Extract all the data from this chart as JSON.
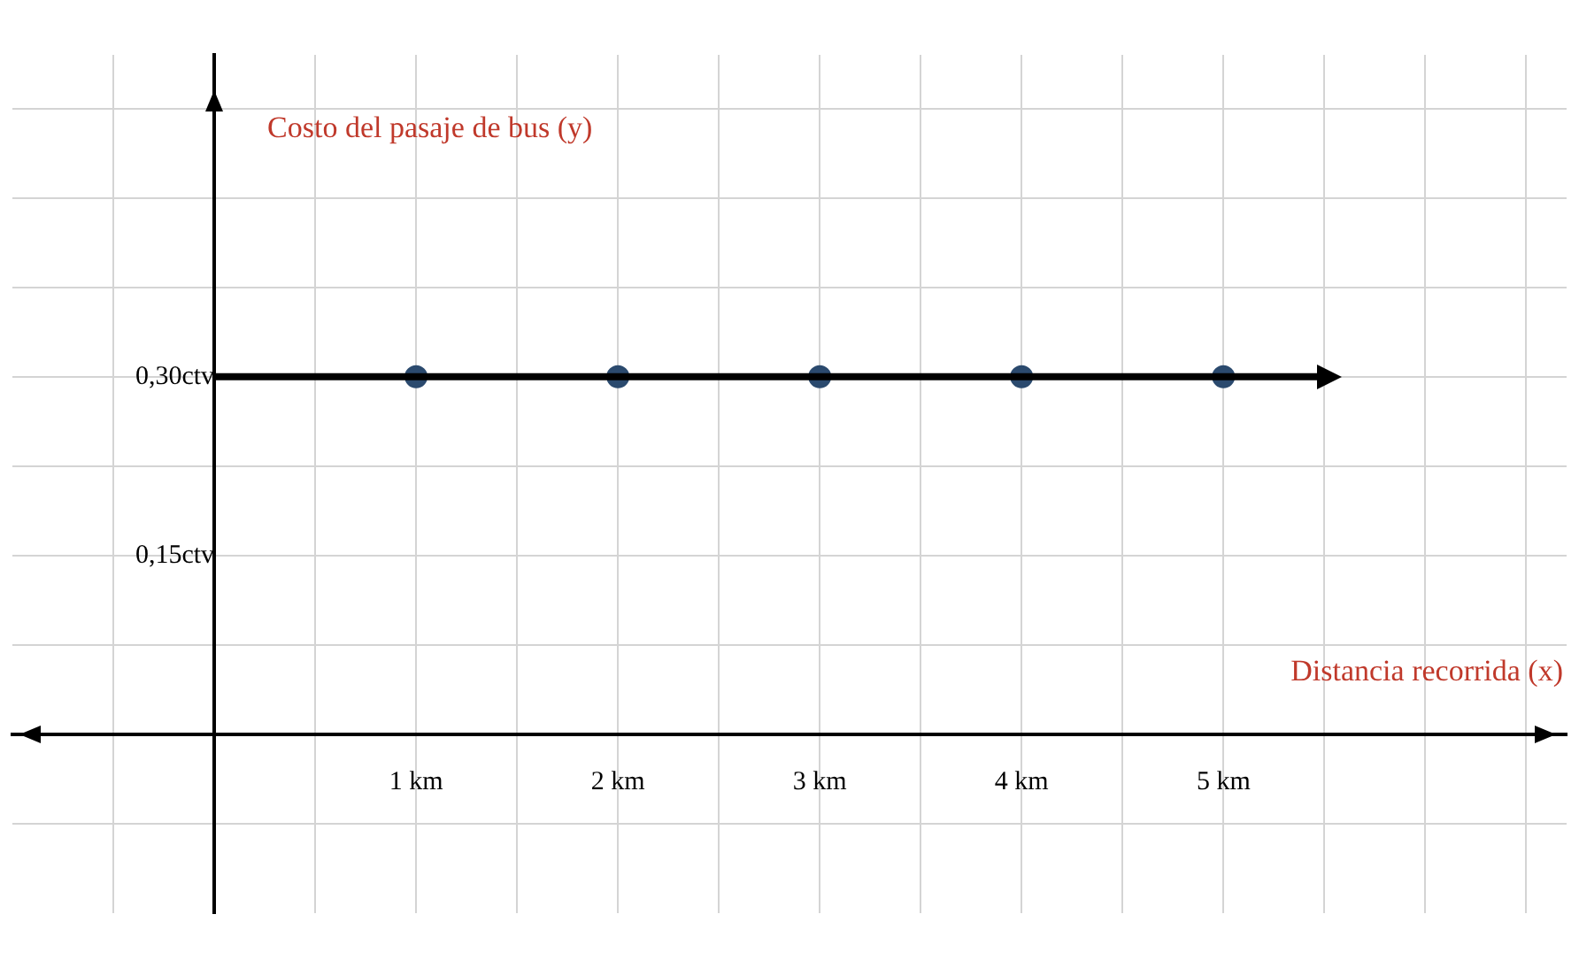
{
  "chart_data": {
    "type": "line",
    "xlabel": "Distancia recorrida (x)",
    "ylabel": "Costo del pasaje de bus (y)",
    "xlim": [
      -1,
      6.7
    ],
    "ylim": [
      -0.15,
      0.57
    ],
    "xticks": [
      {
        "value": -0.5,
        "label": null
      },
      {
        "value": 0,
        "label": null
      },
      {
        "value": 0.5,
        "label": null
      },
      {
        "value": 1,
        "label": "1 km"
      },
      {
        "value": 1.5,
        "label": null
      },
      {
        "value": 2,
        "label": "2 km"
      },
      {
        "value": 2.5,
        "label": null
      },
      {
        "value": 3,
        "label": "3 km"
      },
      {
        "value": 3.5,
        "label": null
      },
      {
        "value": 4,
        "label": "4 km"
      },
      {
        "value": 4.5,
        "label": null
      },
      {
        "value": 5,
        "label": "5 km"
      },
      {
        "value": 5.5,
        "label": null
      },
      {
        "value": 6,
        "label": null
      },
      {
        "value": 6.5,
        "label": null
      }
    ],
    "yticks": [
      {
        "value": -0.075,
        "label": null
      },
      {
        "value": 0,
        "label": null
      },
      {
        "value": 0.075,
        "label": null
      },
      {
        "value": 0.15,
        "label": "0,15ctv"
      },
      {
        "value": 0.225,
        "label": null
      },
      {
        "value": 0.3,
        "label": "0,30ctv"
      },
      {
        "value": 0.375,
        "label": null
      },
      {
        "value": 0.45,
        "label": null
      },
      {
        "value": 0.525,
        "label": null
      }
    ],
    "grid": true,
    "legend": false,
    "series": [
      {
        "type": "line",
        "x": [
          0,
          5.5
        ],
        "values": [
          0.3,
          0.3
        ],
        "color": "#000000"
      },
      {
        "type": "scatter",
        "x": [
          1,
          2,
          3,
          4,
          5
        ],
        "values": [
          0.3,
          0.3,
          0.3,
          0.3,
          0.3
        ],
        "color": "#2b4a6e",
        "marker": "circle"
      }
    ]
  }
}
